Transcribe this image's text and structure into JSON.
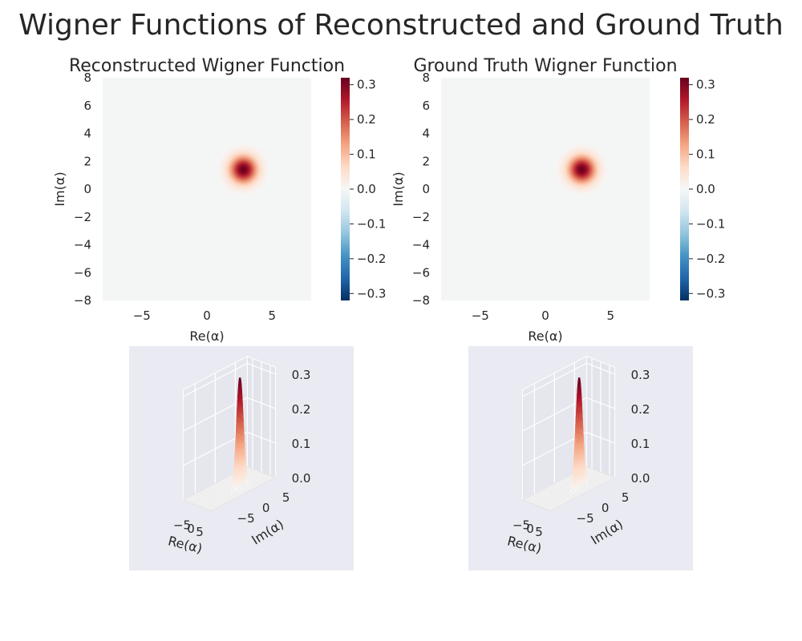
{
  "figure": {
    "title": "Wigner Functions of Reconstructed and Ground Truth"
  },
  "chart_data": [
    {
      "type": "heatmap",
      "title": "Reconstructed Wigner Function",
      "xlabel": "Re(α)",
      "ylabel": "Im(α)",
      "xlim": [
        -8,
        8
      ],
      "ylim": [
        -8,
        8
      ],
      "x_ticks": [
        "−5",
        "0",
        "5"
      ],
      "y_ticks": [
        "8",
        "6",
        "4",
        "2",
        "0",
        "−2",
        "−4",
        "−6",
        "−8"
      ],
      "colormap": "RdBu_r",
      "clim": [
        -0.32,
        0.32
      ],
      "colorbar_ticks": [
        "0.3",
        "0.2",
        "0.1",
        "0.0",
        "−0.1",
        "−0.2",
        "−0.3"
      ],
      "peak": {
        "re": 2.8,
        "im": 1.4,
        "value": 0.32,
        "width": 0.7
      },
      "grid": false
    },
    {
      "type": "heatmap",
      "title": "Ground Truth Wigner Function",
      "xlabel": "Re(α)",
      "ylabel": "Im(α)",
      "xlim": [
        -8,
        8
      ],
      "ylim": [
        -8,
        8
      ],
      "x_ticks": [
        "−5",
        "0",
        "5"
      ],
      "y_ticks": [
        "8",
        "6",
        "4",
        "2",
        "0",
        "−2",
        "−4",
        "−6",
        "−8"
      ],
      "colormap": "RdBu_r",
      "clim": [
        -0.32,
        0.32
      ],
      "colorbar_ticks": [
        "0.3",
        "0.2",
        "0.1",
        "0.0",
        "−0.1",
        "−0.2",
        "−0.3"
      ],
      "peak": {
        "re": 2.8,
        "im": 1.4,
        "value": 0.32,
        "width": 0.7
      },
      "grid": false
    },
    {
      "type": "surface",
      "xlabel": "Re(α)",
      "ylabel": "Im(α)",
      "x_ticks": [
        "−5",
        "0",
        "5"
      ],
      "y_ticks": [
        "5",
        "0",
        "−5"
      ],
      "z_ticks": [
        "0.0",
        "0.1",
        "0.2",
        "0.3"
      ],
      "xlim": [
        -8,
        8
      ],
      "ylim": [
        -8,
        8
      ],
      "zlim": [
        0,
        0.32
      ],
      "peak": {
        "re": 2.8,
        "im": 1.4,
        "value": 0.32,
        "width": 0.7
      },
      "grid": true
    },
    {
      "type": "surface",
      "xlabel": "Re(α)",
      "ylabel": "Im(α)",
      "x_ticks": [
        "−5",
        "0",
        "5"
      ],
      "y_ticks": [
        "5",
        "0",
        "−5"
      ],
      "z_ticks": [
        "0.0",
        "0.1",
        "0.2",
        "0.3"
      ],
      "xlim": [
        -8,
        8
      ],
      "ylim": [
        -8,
        8
      ],
      "zlim": [
        0,
        0.32
      ],
      "peak": {
        "re": 2.8,
        "im": 1.4,
        "value": 0.32,
        "width": 0.7
      },
      "grid": true
    }
  ]
}
